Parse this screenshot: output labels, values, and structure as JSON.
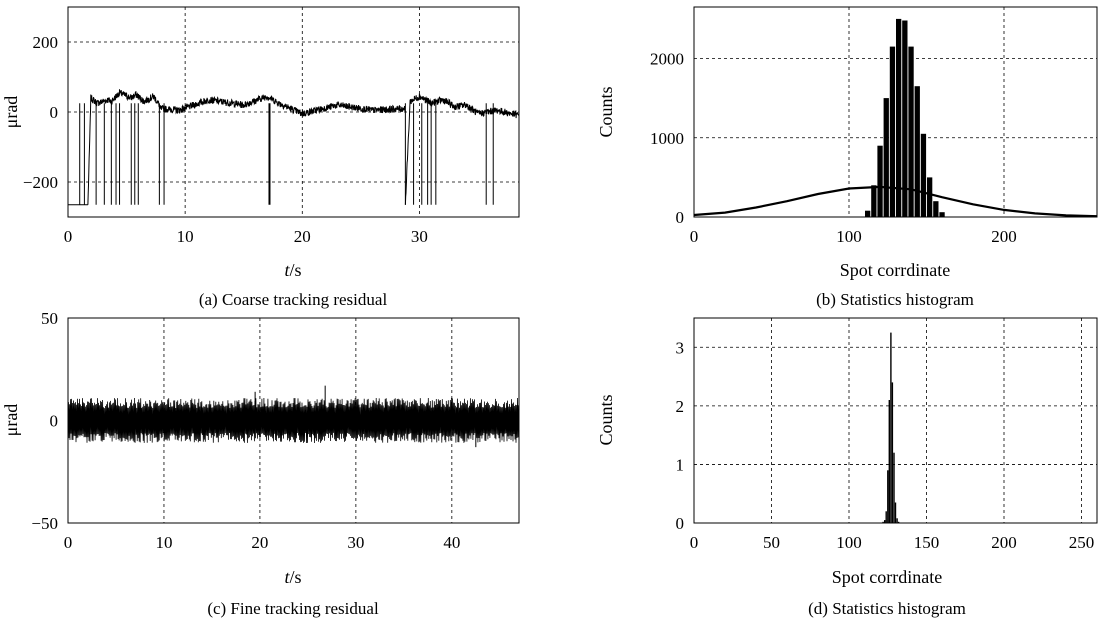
{
  "chart_data": [
    {
      "id": "a",
      "type": "line",
      "caption": "(a) Coarse tracking residual",
      "xlabel_italic": "t",
      "xlabel_rest": "/s",
      "ylabel": "μrad",
      "xlim": [
        0,
        38.5
      ],
      "ylim": [
        -300,
        300
      ],
      "xticks": [
        0,
        10,
        20,
        30
      ],
      "yticks": [
        -200,
        0,
        200
      ],
      "ytick_labels": [
        "−200",
        "0",
        "200"
      ],
      "grid": true,
      "series": [
        {
          "baseline_segments": [
            {
              "x": [
                0,
                1.7
              ],
              "y": [
                -265,
                -265
              ]
            },
            {
              "x": [
                1.7,
                1.95,
                2.5,
                3.4,
                3.7,
                4.4,
                5.4,
                5.8,
                6.5,
                7.3,
                7.8
              ],
              "y": [
                -265,
                40,
                25,
                35,
                30,
                55,
                40,
                50,
                30,
                45,
                20
              ]
            },
            {
              "x": [
                7.8,
                9.5,
                12,
                15,
                17,
                18,
                20,
                23,
                26,
                28.8
              ],
              "y": [
                10,
                5,
                35,
                20,
                45,
                25,
                -5,
                20,
                5,
                10
              ]
            },
            {
              "x": [
                28.8,
                29.2,
                30,
                31,
                32,
                33,
                34,
                35,
                36.6,
                38.5
              ],
              "y": [
                -265,
                30,
                45,
                25,
                35,
                15,
                20,
                -5,
                5,
                -10
              ]
            }
          ],
          "drops": [
            1.0,
            1.4,
            2.4,
            3.1,
            3.7,
            4.1,
            4.4,
            5.4,
            5.7,
            6.0,
            7.8,
            8.2,
            17.2,
            28.8,
            29.5,
            30.2,
            30.7,
            31.0,
            31.4,
            35.7,
            36.3
          ],
          "drop_floor": -265,
          "noise_amplitude": 10
        }
      ]
    },
    {
      "id": "b",
      "type": "bar",
      "caption": "(b) Statistics histogram",
      "xlabel": "Spot corrdinate",
      "ylabel": "Counts",
      "xlim": [
        0,
        260
      ],
      "ylim": [
        0,
        2650
      ],
      "xticks": [
        0,
        100,
        200
      ],
      "yticks": [
        0,
        1000,
        2000
      ],
      "grid": true,
      "bins": {
        "x": [
          112,
          116,
          120,
          124,
          128,
          132,
          136,
          140,
          144,
          148,
          152,
          156,
          160
        ],
        "values": [
          80,
          400,
          900,
          1500,
          2150,
          2500,
          2480,
          2150,
          1650,
          1050,
          500,
          200,
          60
        ]
      },
      "overlay_curve": {
        "x": [
          0,
          20,
          40,
          60,
          80,
          100,
          120,
          140,
          160,
          180,
          200,
          220,
          240,
          260
        ],
        "y": [
          25,
          55,
          120,
          200,
          290,
          360,
          380,
          350,
          250,
          160,
          90,
          45,
          20,
          10
        ]
      }
    },
    {
      "id": "c",
      "type": "line",
      "caption": "(c) Fine tracking residual",
      "xlabel_italic": "t",
      "xlabel_rest": "/s",
      "ylabel": "μrad",
      "xlim": [
        0,
        47
      ],
      "ylim": [
        -50,
        50
      ],
      "xticks": [
        0,
        10,
        20,
        30,
        40
      ],
      "yticks": [
        -50,
        0,
        50
      ],
      "ytick_labels": [
        "−50",
        "0",
        "50"
      ],
      "grid": true,
      "series": [
        {
          "mean": 0,
          "amplitude": 11,
          "peaks": [
            {
              "x": 26.8,
              "y": 17
            },
            {
              "x": 19.5,
              "y": 14
            },
            {
              "x": 42.5,
              "y": -13
            }
          ]
        }
      ]
    },
    {
      "id": "d",
      "type": "bar",
      "caption": "(d) Statistics histogram",
      "xlabel": "Spot corrdinate",
      "ylabel": "Counts",
      "xlim": [
        0,
        260
      ],
      "ylim": [
        0,
        3.5
      ],
      "xticks": [
        0,
        50,
        100,
        150,
        200,
        250
      ],
      "yticks": [
        0,
        1,
        2,
        3
      ],
      "grid": true,
      "bins": {
        "x": [
          122,
          123,
          124,
          125,
          126,
          127,
          128,
          129,
          130,
          131,
          132
        ],
        "values": [
          0.02,
          0.05,
          0.2,
          0.9,
          2.1,
          3.25,
          2.4,
          1.2,
          0.35,
          0.08,
          0.02
        ]
      }
    }
  ]
}
